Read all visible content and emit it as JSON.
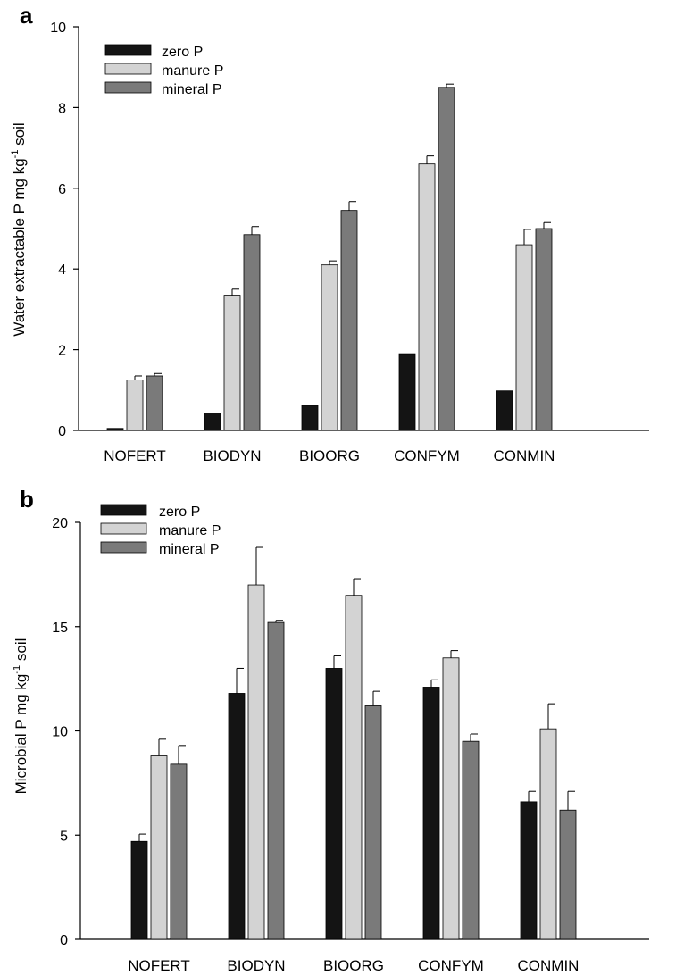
{
  "chart_data": [
    {
      "type": "bar",
      "panel_label": "a",
      "ylabel": "Water extractable P mg kg-1 soil",
      "ylabel_parts": {
        "main": "Water extractable P mg kg",
        "sup": "-1",
        "tail": " soil"
      },
      "ylim": [
        0,
        10
      ],
      "yticks": [
        0,
        2,
        4,
        6,
        8,
        10
      ],
      "categories": [
        "NOFERT",
        "BIODYN",
        "BIOORG",
        "CONFYM",
        "CONMIN"
      ],
      "legend_position": "top-left",
      "series": [
        {
          "name": "zero P",
          "color": "#141414",
          "values": [
            0.05,
            0.43,
            0.62,
            1.9,
            0.98
          ],
          "errors": [
            0,
            0,
            0,
            0,
            0
          ]
        },
        {
          "name": "manure P",
          "color": "#d3d3d3",
          "values": [
            1.25,
            3.35,
            4.1,
            6.6,
            4.6
          ],
          "errors": [
            0.1,
            0.15,
            0.1,
            0.2,
            0.38
          ]
        },
        {
          "name": "mineral P",
          "color": "#7a7a7a",
          "values": [
            1.35,
            4.85,
            5.45,
            8.5,
            5.0
          ],
          "errors": [
            0.06,
            0.2,
            0.22,
            0.08,
            0.15
          ]
        }
      ]
    },
    {
      "type": "bar",
      "panel_label": "b",
      "ylabel": "Microbial P mg kg-1 soil",
      "ylabel_parts": {
        "main": "Microbial P mg kg",
        "sup": "-1",
        "tail": " soil"
      },
      "ylim": [
        0,
        20
      ],
      "yticks": [
        0,
        5,
        10,
        15,
        20
      ],
      "categories": [
        "NOFERT",
        "BIODYN",
        "BIOORG",
        "CONFYM",
        "CONMIN"
      ],
      "legend_position": "top-left",
      "series": [
        {
          "name": "zero P",
          "color": "#141414",
          "values": [
            4.7,
            11.8,
            13.0,
            12.1,
            6.6
          ],
          "errors": [
            0.35,
            1.2,
            0.6,
            0.35,
            0.5
          ]
        },
        {
          "name": "manure P",
          "color": "#d3d3d3",
          "values": [
            8.8,
            17.0,
            16.5,
            13.5,
            10.1
          ],
          "errors": [
            0.8,
            1.8,
            0.8,
            0.35,
            1.2
          ]
        },
        {
          "name": "mineral P",
          "color": "#7a7a7a",
          "values": [
            8.4,
            15.2,
            11.2,
            9.5,
            6.2
          ],
          "errors": [
            0.9,
            0.1,
            0.7,
            0.35,
            0.9
          ]
        }
      ]
    }
  ]
}
